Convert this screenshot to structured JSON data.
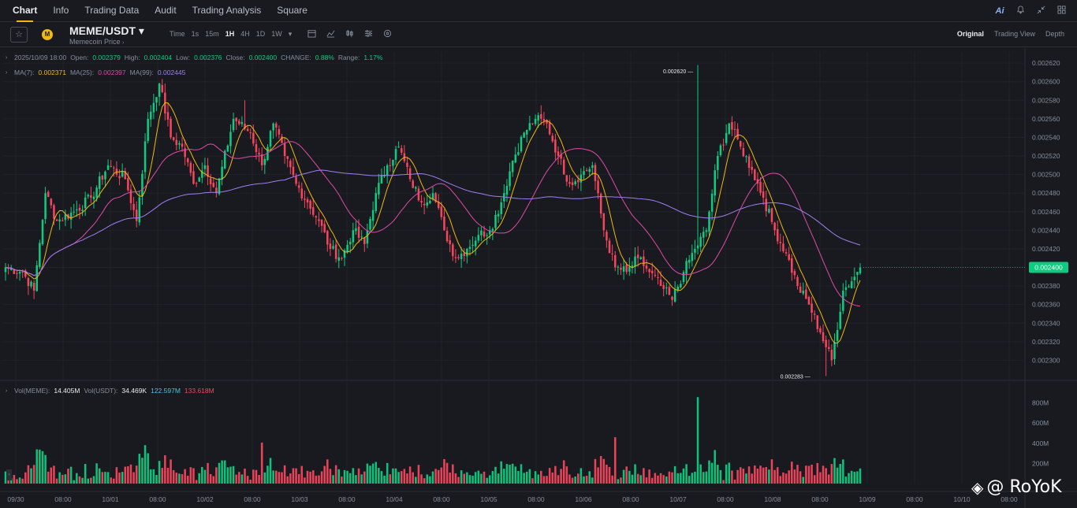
{
  "nav": {
    "tabs": [
      "Chart",
      "Info",
      "Trading Data",
      "Audit",
      "Trading Analysis",
      "Square"
    ],
    "active": "Chart",
    "right_icons": [
      "ai-icon",
      "bell-icon",
      "collapse-icon",
      "grid-icon"
    ],
    "ai_label": "Ai"
  },
  "symbol": {
    "pair": "MEME/USDT",
    "dropdown": "▾",
    "subtitle": "Memecoin Price",
    "logo_text": "M"
  },
  "intervals": [
    "Time",
    "1s",
    "15m",
    "1H",
    "4H",
    "1D",
    "1W"
  ],
  "interval_selected": "1H",
  "views": [
    "Original",
    "Trading View",
    "Depth"
  ],
  "view_selected": "Original",
  "ohlc": {
    "date": "2025/10/09 18:00",
    "open_label": "Open:",
    "open": "0.002379",
    "high_label": "High:",
    "high": "0.002404",
    "low_label": "Low:",
    "low": "0.002376",
    "close_label": "Close:",
    "close": "0.002400",
    "change_label": "CHANGE:",
    "change": "0.88%",
    "range_label": "Range:",
    "range": "1.17%"
  },
  "ma": {
    "ma7_label": "MA(7):",
    "ma7": "0.002371",
    "ma25_label": "MA(25):",
    "ma25": "0.002397",
    "ma99_label": "MA(99):",
    "ma99": "0.002445"
  },
  "volume_legend": {
    "vol_meme_label": "Vol(MEME):",
    "vol_meme": "14.405M",
    "vol_usdt_label": "Vol(USDT):",
    "vol_usdt": "34.469K",
    "ma1": "122.597M",
    "ma2": "133.618M"
  },
  "markers": {
    "high": "0.002620",
    "low": "0.002283"
  },
  "current_price": "0.002400",
  "watermark": "@ RoYoK",
  "chart_data": {
    "type": "candlestick",
    "price_axis": [
      "0.002620",
      "0.002600",
      "0.002580",
      "0.002560",
      "0.002540",
      "0.002520",
      "0.002500",
      "0.002480",
      "0.002460",
      "0.002440",
      "0.002420",
      "0.002400",
      "0.002380",
      "0.002360",
      "0.002340",
      "0.002320",
      "0.002300"
    ],
    "ylim": [
      0.00228,
      0.002632
    ],
    "volume_axis": [
      "800M",
      "600M",
      "400M",
      "200M"
    ],
    "volume_ylim": [
      0,
      1000
    ],
    "x_ticks": [
      "09/30",
      "08:00",
      "10/01",
      "08:00",
      "10/02",
      "08:00",
      "10/03",
      "08:00",
      "10/04",
      "08:00",
      "10/05",
      "08:00",
      "10/06",
      "08:00",
      "10/07",
      "08:00",
      "10/08",
      "08:00",
      "10/09",
      "08:00",
      "10/10",
      "08:00"
    ],
    "anchors": [
      [
        0,
        0.0024
      ],
      [
        6,
        0.002395
      ],
      [
        10,
        0.002375
      ],
      [
        14,
        0.00248
      ],
      [
        18,
        0.00245
      ],
      [
        24,
        0.00246
      ],
      [
        30,
        0.002475
      ],
      [
        36,
        0.00251
      ],
      [
        42,
        0.002495
      ],
      [
        46,
        0.00245
      ],
      [
        50,
        0.00256
      ],
      [
        54,
        0.002598
      ],
      [
        58,
        0.00254
      ],
      [
        62,
        0.00253
      ],
      [
        66,
        0.00249
      ],
      [
        70,
        0.00251
      ],
      [
        74,
        0.00248
      ],
      [
        80,
        0.00256
      ],
      [
        86,
        0.002545
      ],
      [
        90,
        0.00251
      ],
      [
        94,
        0.002555
      ],
      [
        98,
        0.00252
      ],
      [
        102,
        0.00249
      ],
      [
        106,
        0.00247
      ],
      [
        110,
        0.00245
      ],
      [
        114,
        0.00242
      ],
      [
        118,
        0.00241
      ],
      [
        122,
        0.00244
      ],
      [
        126,
        0.002425
      ],
      [
        130,
        0.00248
      ],
      [
        134,
        0.00251
      ],
      [
        138,
        0.00253
      ],
      [
        142,
        0.002495
      ],
      [
        146,
        0.00247
      ],
      [
        150,
        0.00248
      ],
      [
        154,
        0.00244
      ],
      [
        158,
        0.00241
      ],
      [
        162,
        0.00242
      ],
      [
        166,
        0.002435
      ],
      [
        170,
        0.00244
      ],
      [
        174,
        0.00247
      ],
      [
        178,
        0.002515
      ],
      [
        182,
        0.002545
      ],
      [
        186,
        0.00256
      ],
      [
        190,
        0.002555
      ],
      [
        194,
        0.00252
      ],
      [
        198,
        0.00249
      ],
      [
        202,
        0.0025
      ],
      [
        206,
        0.00251
      ],
      [
        210,
        0.00244
      ],
      [
        214,
        0.0024
      ],
      [
        218,
        0.002395
      ],
      [
        222,
        0.00241
      ],
      [
        226,
        0.002395
      ],
      [
        230,
        0.00238
      ],
      [
        234,
        0.002365
      ],
      [
        238,
        0.002395
      ],
      [
        242,
        0.00242
      ],
      [
        246,
        0.00244
      ],
      [
        250,
        0.00252
      ],
      [
        254,
        0.002555
      ],
      [
        258,
        0.00253
      ],
      [
        262,
        0.002505
      ],
      [
        266,
        0.002475
      ],
      [
        270,
        0.00244
      ],
      [
        274,
        0.002415
      ],
      [
        278,
        0.00238
      ],
      [
        282,
        0.00236
      ],
      [
        286,
        0.00233
      ],
      [
        290,
        0.0023
      ],
      [
        294,
        0.002375
      ],
      [
        298,
        0.00239
      ],
      [
        300,
        0.0024
      ]
    ]
  }
}
